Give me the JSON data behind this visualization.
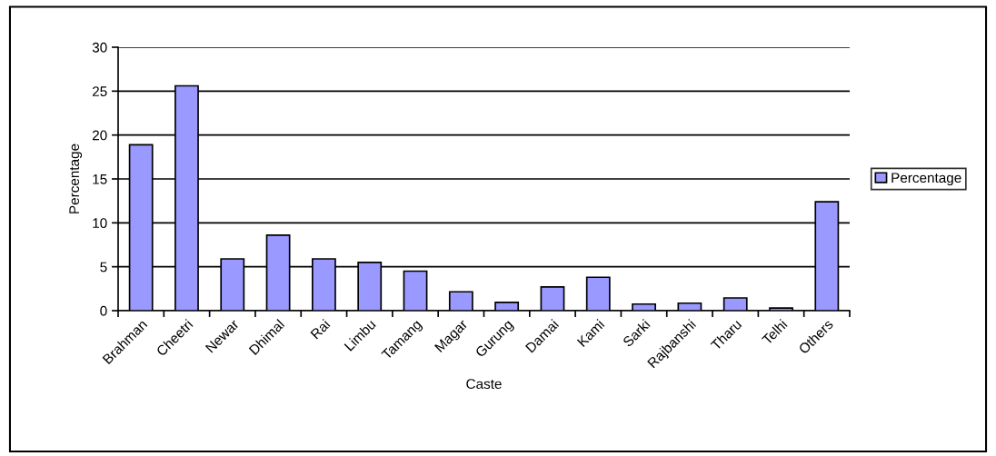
{
  "chart_data": {
    "type": "bar",
    "xlabel": "Caste",
    "ylabel": "Percentage",
    "categories": [
      "Brahman",
      "Cheetri",
      "Newar",
      "Dhimal",
      "Rai",
      "Limbu",
      "Tamang",
      "Magar",
      "Gurung",
      "Damai",
      "Kami",
      "Sarki",
      "Rajbanshi",
      "Tharu",
      "Telhi",
      "Others"
    ],
    "series": [
      {
        "name": "Percentage",
        "color": "#9999ff",
        "values": [
          18.9,
          25.6,
          5.9,
          8.6,
          5.9,
          5.5,
          4.5,
          2.15,
          0.95,
          2.7,
          3.8,
          0.75,
          0.85,
          1.45,
          0.3,
          12.4
        ]
      }
    ],
    "ylim": [
      0,
      30
    ],
    "yticks": [
      0,
      5,
      10,
      15,
      20,
      25,
      30
    ],
    "grid": "y",
    "legend": "right"
  }
}
